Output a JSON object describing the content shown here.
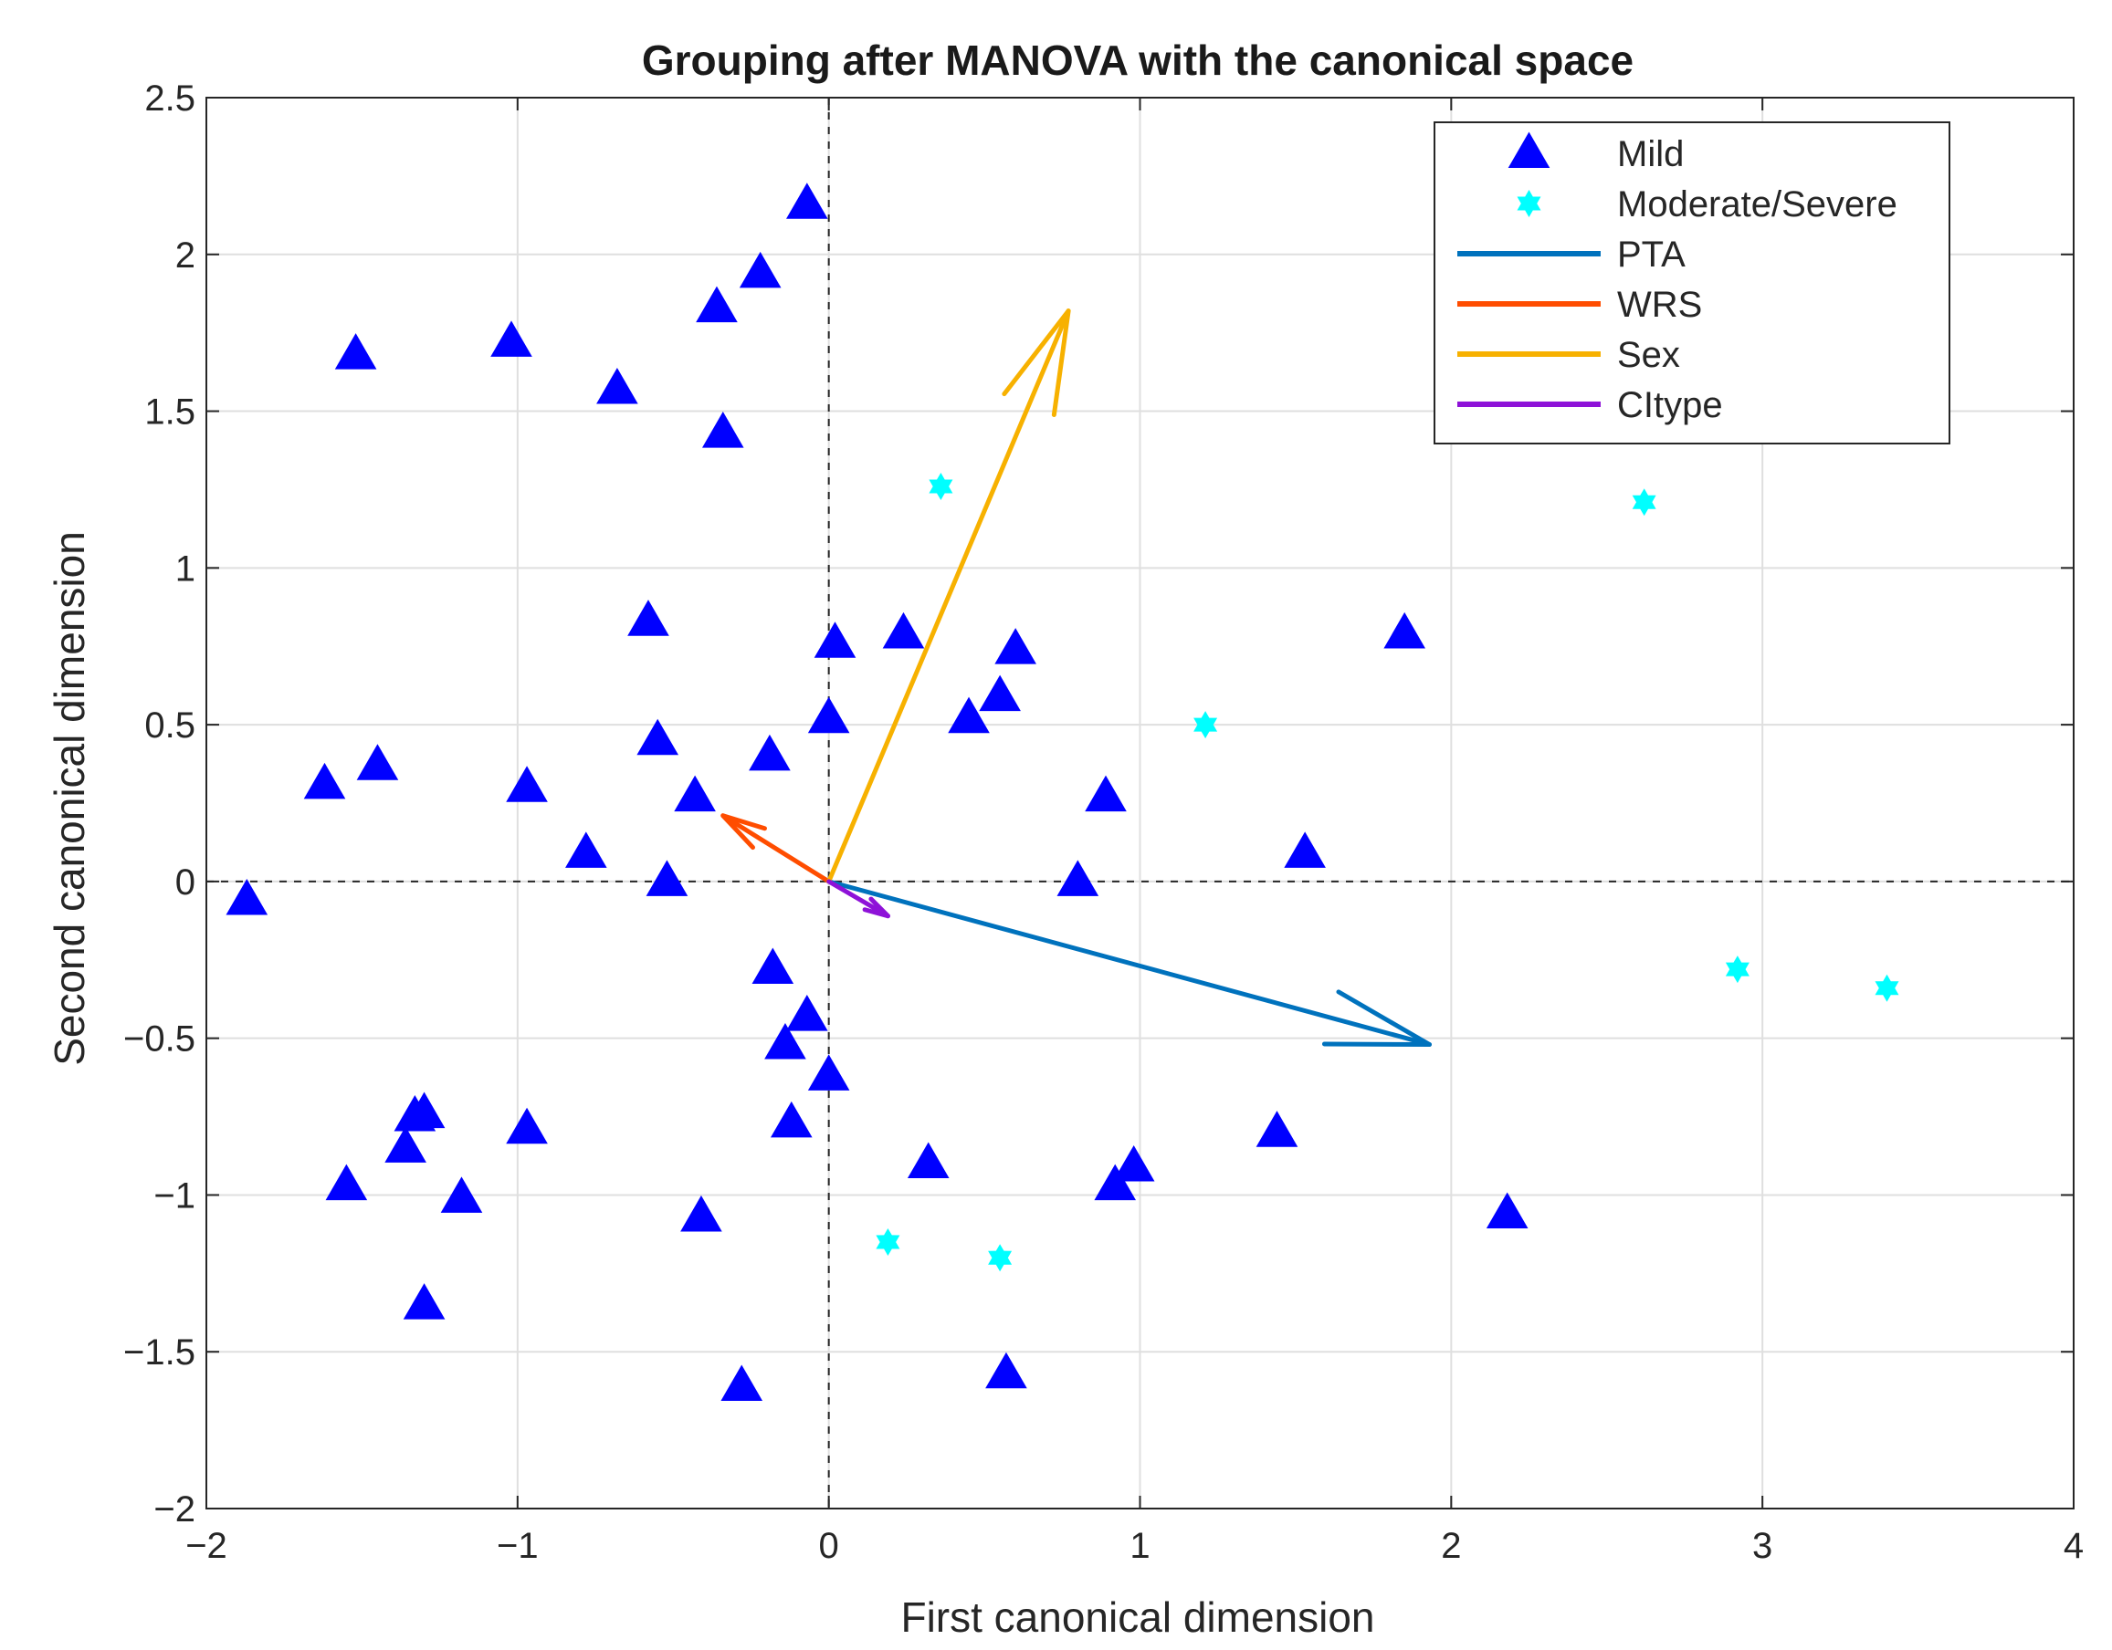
{
  "chart_data": {
    "type": "scatter",
    "title": "Grouping after MANOVA with the canonical space",
    "xlabel": "First canonical dimension",
    "ylabel": "Second canonical dimension",
    "xlim": [
      -2,
      4
    ],
    "ylim": [
      -2,
      2.5
    ],
    "xticks": [
      -2,
      -1,
      0,
      1,
      2,
      3,
      4
    ],
    "yticks": [
      -2,
      -1.5,
      -1,
      -0.5,
      0,
      0.5,
      1,
      1.5,
      2,
      2.5
    ],
    "xtick_labels": [
      "−2",
      "−1",
      "0",
      "1",
      "2",
      "3",
      "4"
    ],
    "ytick_labels": [
      "−2",
      "−1.5",
      "−1",
      "−0.5",
      "0",
      "0.5",
      "1",
      "1.5",
      "2",
      "2.5"
    ],
    "grid": true,
    "zero_lines": true,
    "legend_position": "top-right",
    "series": [
      {
        "name": "Mild",
        "marker": "triangle",
        "color": "#0000ff",
        "points": [
          [
            -0.07,
            2.16
          ],
          [
            -0.22,
            1.94
          ],
          [
            -0.36,
            1.83
          ],
          [
            -1.52,
            1.68
          ],
          [
            -1.02,
            1.72
          ],
          [
            -0.68,
            1.57
          ],
          [
            -0.34,
            1.43
          ],
          [
            -0.58,
            0.83
          ],
          [
            0.02,
            0.76
          ],
          [
            0.24,
            0.79
          ],
          [
            0.6,
            0.74
          ],
          [
            0.45,
            0.52
          ],
          [
            0.55,
            0.59
          ],
          [
            0.0,
            0.52
          ],
          [
            -0.55,
            0.45
          ],
          [
            -0.19,
            0.4
          ],
          [
            -1.62,
            0.31
          ],
          [
            -1.45,
            0.37
          ],
          [
            -0.97,
            0.3
          ],
          [
            -0.43,
            0.27
          ],
          [
            -0.78,
            0.09
          ],
          [
            -0.52,
            0.0
          ],
          [
            -1.87,
            -0.06
          ],
          [
            0.89,
            0.27
          ],
          [
            0.8,
            0.0
          ],
          [
            1.53,
            0.09
          ],
          [
            1.85,
            0.79
          ],
          [
            -0.18,
            -0.28
          ],
          [
            -0.07,
            -0.43
          ],
          [
            -0.14,
            -0.52
          ],
          [
            0.0,
            -0.62
          ],
          [
            -0.12,
            -0.77
          ],
          [
            -1.33,
            -0.75
          ],
          [
            -1.3,
            -0.74
          ],
          [
            -1.36,
            -0.85
          ],
          [
            -0.97,
            -0.79
          ],
          [
            -1.55,
            -0.97
          ],
          [
            -1.18,
            -1.01
          ],
          [
            -1.3,
            -1.35
          ],
          [
            -0.41,
            -1.07
          ],
          [
            0.32,
            -0.9
          ],
          [
            0.92,
            -0.97
          ],
          [
            0.98,
            -0.91
          ],
          [
            1.44,
            -0.8
          ],
          [
            2.18,
            -1.06
          ],
          [
            -0.28,
            -1.61
          ],
          [
            0.57,
            -1.57
          ]
        ]
      },
      {
        "name": "Moderate/Severe",
        "marker": "hexagram",
        "color": "#00ffff",
        "points": [
          [
            0.36,
            1.26
          ],
          [
            2.62,
            1.21
          ],
          [
            1.21,
            0.5
          ],
          [
            2.92,
            -0.28
          ],
          [
            3.4,
            -0.34
          ],
          [
            0.19,
            -1.15
          ],
          [
            0.55,
            -1.2
          ]
        ]
      }
    ],
    "vectors": [
      {
        "name": "PTA",
        "color": "#0072bd",
        "x": 1.93,
        "y": -0.52
      },
      {
        "name": "WRS",
        "color": "#ff4d00",
        "x": -0.34,
        "y": 0.21
      },
      {
        "name": "Sex",
        "color": "#f7b100",
        "x": 0.77,
        "y": 1.82
      },
      {
        "name": "CItype",
        "color": "#8e12d8",
        "x": 0.19,
        "y": -0.11
      }
    ]
  }
}
